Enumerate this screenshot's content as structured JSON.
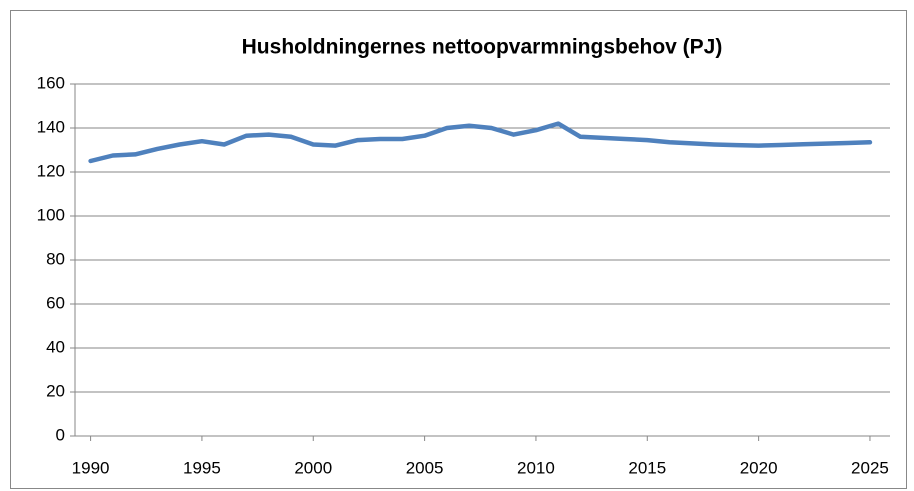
{
  "chart_data": {
    "type": "line",
    "title": "Husholdningernes nettoopvarmningsbehov (PJ)",
    "x": [
      1990,
      1991,
      1992,
      1993,
      1994,
      1995,
      1996,
      1997,
      1998,
      1999,
      2000,
      2001,
      2002,
      2003,
      2004,
      2005,
      2006,
      2007,
      2008,
      2009,
      2010,
      2011,
      2012,
      2013,
      2014,
      2015,
      2016,
      2017,
      2018,
      2019,
      2020,
      2021,
      2022,
      2023,
      2024,
      2025
    ],
    "values": [
      125,
      127.5,
      128,
      130.5,
      132.5,
      134,
      132.5,
      136.5,
      137,
      136,
      132.5,
      132,
      134.5,
      135,
      135,
      136.5,
      140,
      141,
      140,
      137,
      139,
      142,
      136,
      135.5,
      135,
      134.5,
      133.5,
      133,
      132.5,
      132.2,
      132,
      132.3,
      132.6,
      132.9,
      133.2,
      133.5
    ],
    "color": "#4f81bd",
    "xlim": [
      1989.3,
      2025.9
    ],
    "xticks": [
      1990,
      1995,
      2000,
      2005,
      2010,
      2015,
      2020,
      2025
    ],
    "ylim": [
      0,
      160
    ],
    "yticks": [
      0,
      20,
      40,
      60,
      80,
      100,
      120,
      140,
      160
    ],
    "grid": true
  }
}
